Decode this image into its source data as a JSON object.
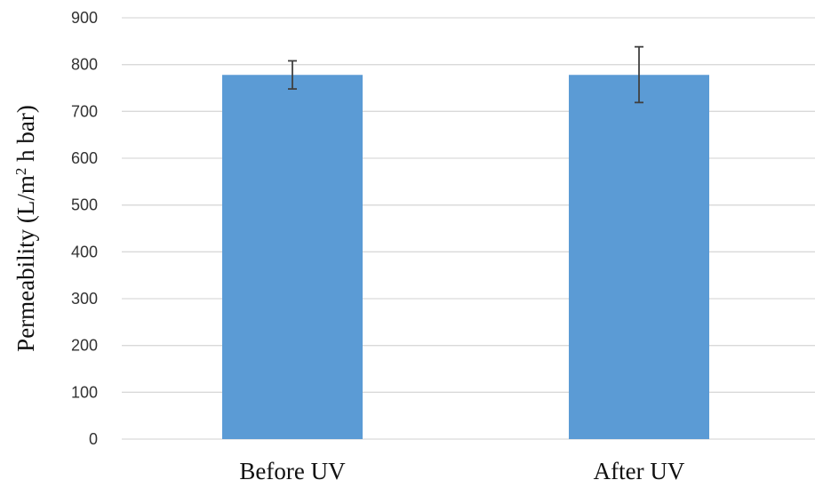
{
  "chart_data": {
    "type": "bar",
    "title": "",
    "xlabel": "",
    "ylabel": {
      "before": "Permeability (L/m",
      "sup": "2",
      "after": " h bar)"
    },
    "categories": [
      "Before UV",
      "After UV"
    ],
    "values": [
      778,
      778
    ],
    "error_low": [
      748,
      719
    ],
    "error_high": [
      808,
      838
    ],
    "ylim": [
      0,
      900
    ],
    "yticks": [
      "0",
      "100",
      "200",
      "300",
      "400",
      "500",
      "600",
      "700",
      "800",
      "900"
    ],
    "grid": true,
    "legend": "none",
    "colors": {
      "bar": "#5b9bd5",
      "grid": "#d9d9d9",
      "error": "#404040"
    }
  }
}
